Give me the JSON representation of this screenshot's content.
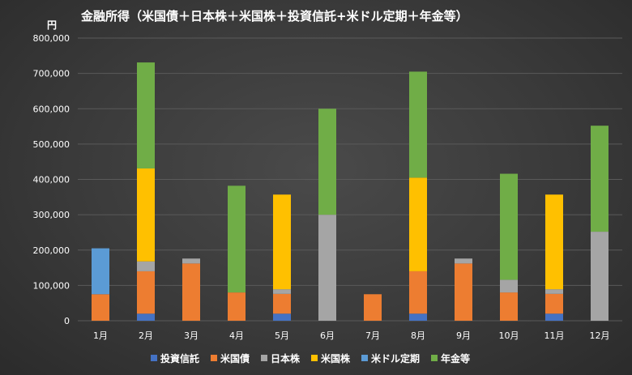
{
  "chart_data": {
    "type": "bar",
    "stacked": true,
    "title": "金融所得（米国債＋日本株＋米国株＋投資信託+米ドル定期＋年金等）",
    "yunit": "円",
    "ylim": [
      0,
      800000
    ],
    "yticks": [
      "0",
      "100,000",
      "200,000",
      "300,000",
      "400,000",
      "500,000",
      "600,000",
      "700,000",
      "800,000"
    ],
    "ytick_values": [
      0,
      100000,
      200000,
      300000,
      400000,
      500000,
      600000,
      700000,
      800000
    ],
    "grid": true,
    "legend_position": "bottom",
    "categories": [
      "1月",
      "2月",
      "3月",
      "4月",
      "5月",
      "6月",
      "7月",
      "8月",
      "9月",
      "10月",
      "11月",
      "12月"
    ],
    "series": [
      {
        "name": "投資信託",
        "color": "#4472c4",
        "values": [
          0,
          20000,
          0,
          0,
          20000,
          0,
          0,
          20000,
          0,
          0,
          20000,
          0
        ]
      },
      {
        "name": "米国債",
        "color": "#ed7d31",
        "values": [
          75000,
          120000,
          162000,
          80000,
          56000,
          0,
          75000,
          120000,
          162000,
          80000,
          56000,
          0
        ]
      },
      {
        "name": "日本株",
        "color": "#a5a5a5",
        "values": [
          0,
          28000,
          14000,
          0,
          13000,
          300000,
          0,
          0,
          14000,
          36000,
          13000,
          252000
        ]
      },
      {
        "name": "米国株",
        "color": "#ffc000",
        "values": [
          0,
          263000,
          0,
          0,
          268000,
          0,
          0,
          265000,
          0,
          0,
          268000,
          0
        ]
      },
      {
        "name": "米ドル定期",
        "color": "#5b9bd5",
        "values": [
          130000,
          0,
          0,
          0,
          0,
          0,
          0,
          0,
          0,
          0,
          0,
          0
        ]
      },
      {
        "name": "年金等",
        "color": "#70ad47",
        "values": [
          0,
          300000,
          0,
          302000,
          0,
          300000,
          0,
          300000,
          0,
          300000,
          0,
          300000
        ]
      }
    ]
  }
}
